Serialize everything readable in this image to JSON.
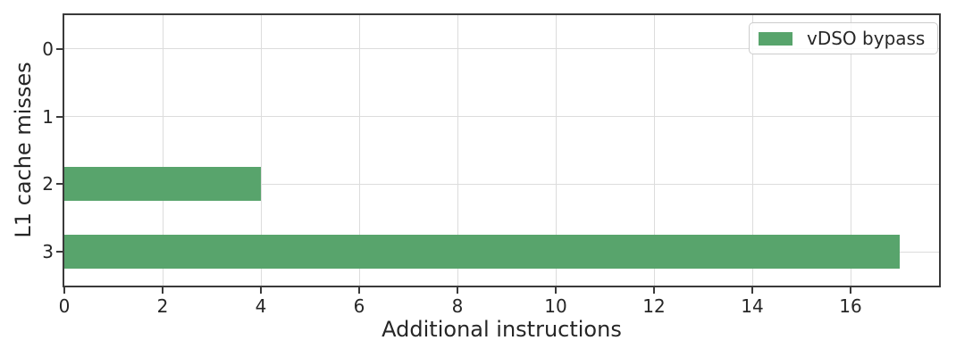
{
  "chart_data": {
    "type": "bar",
    "orientation": "horizontal",
    "title": "",
    "xlabel": "Additional instructions",
    "ylabel": "L1 cache misses",
    "categories": [
      "0",
      "1",
      "2",
      "3"
    ],
    "series": [
      {
        "name": "vDSO bypass",
        "values": [
          0,
          0,
          4,
          17
        ]
      }
    ],
    "xticks": [
      0,
      2,
      4,
      6,
      8,
      10,
      12,
      14,
      16
    ],
    "xlim": [
      0,
      17.8
    ],
    "grid": true,
    "legend_position": "upper right",
    "bar_color": "#58a46c",
    "grid_color": "#dcdcdc",
    "spine_color": "#3a3a3a",
    "text_color": "#262626"
  },
  "legend": {
    "label": "vDSO bypass"
  }
}
